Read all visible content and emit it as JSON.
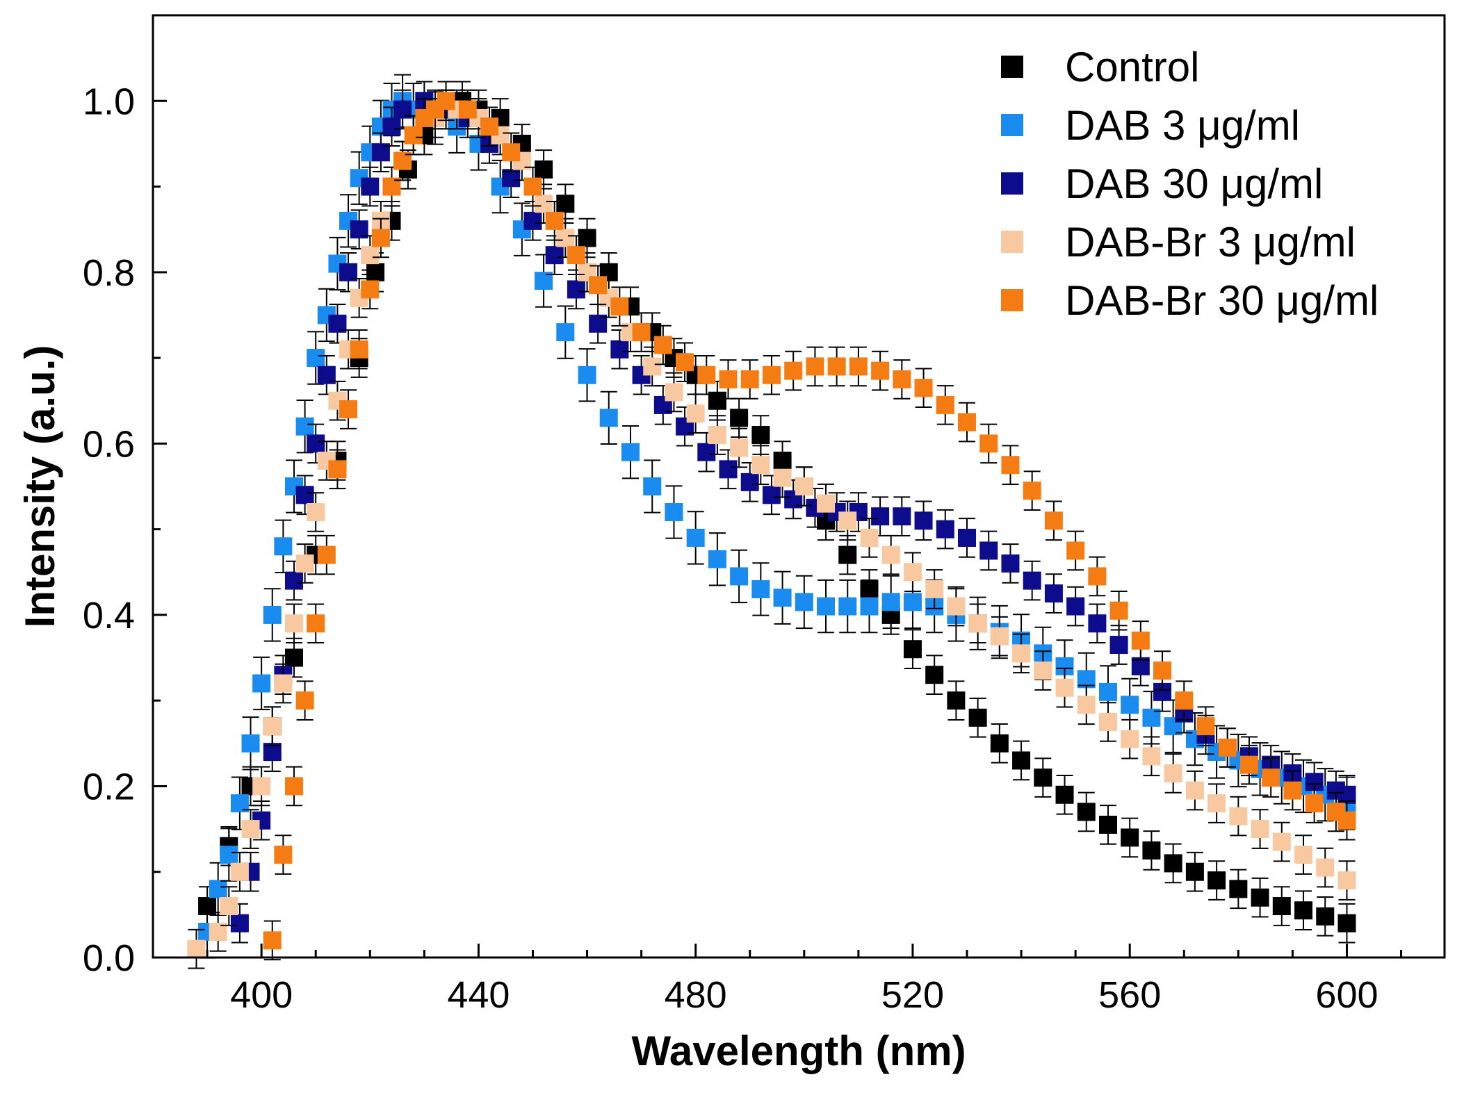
{
  "chart_data": {
    "type": "scatter",
    "title": "",
    "xlabel": "Wavelength (nm)",
    "ylabel": "Intensity (a.u.)",
    "xlim": [
      380,
      618
    ],
    "ylim": [
      0,
      1.1
    ],
    "x_ticks": [
      400,
      440,
      480,
      520,
      560,
      600
    ],
    "x_tick_labels": [
      "400",
      "440",
      "480",
      "520",
      "560",
      "600"
    ],
    "y_ticks": [
      0.0,
      0.2,
      0.4,
      0.6,
      0.8,
      1.0
    ],
    "y_tick_labels": [
      "0.0",
      "0.2",
      "0.4",
      "0.6",
      "0.8",
      "1.0"
    ],
    "x_minor_step": 10,
    "y_minor_step": 0.1,
    "grid": false,
    "legend_position": "top-right",
    "marker": "square",
    "error_bars": true,
    "series": [
      {
        "name": "Control",
        "color": "#000000",
        "points": [
          [
            390,
            0.06
          ],
          [
            394,
            0.13
          ],
          [
            398,
            0.2
          ],
          [
            402,
            0.27
          ],
          [
            406,
            0.35
          ],
          [
            410,
            0.47
          ],
          [
            414,
            0.58
          ],
          [
            418,
            0.7
          ],
          [
            421,
            0.8
          ],
          [
            424,
            0.86
          ],
          [
            427,
            0.92
          ],
          [
            430,
            0.96
          ],
          [
            434,
            0.99
          ],
          [
            437,
            1.0
          ],
          [
            440,
            0.99
          ],
          [
            444,
            0.98
          ],
          [
            448,
            0.95
          ],
          [
            452,
            0.92
          ],
          [
            456,
            0.88
          ],
          [
            460,
            0.84
          ],
          [
            464,
            0.8
          ],
          [
            468,
            0.76
          ],
          [
            472,
            0.73
          ],
          [
            476,
            0.7
          ],
          [
            480,
            0.68
          ],
          [
            484,
            0.65
          ],
          [
            488,
            0.63
          ],
          [
            492,
            0.61
          ],
          [
            496,
            0.58
          ],
          [
            500,
            0.55
          ],
          [
            504,
            0.51
          ],
          [
            508,
            0.47
          ],
          [
            512,
            0.43
          ],
          [
            516,
            0.4
          ],
          [
            520,
            0.36
          ],
          [
            524,
            0.33
          ],
          [
            528,
            0.3
          ],
          [
            532,
            0.28
          ],
          [
            536,
            0.25
          ],
          [
            540,
            0.23
          ],
          [
            544,
            0.21
          ],
          [
            548,
            0.19
          ],
          [
            552,
            0.17
          ],
          [
            556,
            0.155
          ],
          [
            560,
            0.14
          ],
          [
            564,
            0.125
          ],
          [
            568,
            0.11
          ],
          [
            572,
            0.1
          ],
          [
            576,
            0.09
          ],
          [
            580,
            0.08
          ],
          [
            584,
            0.07
          ],
          [
            588,
            0.06
          ],
          [
            592,
            0.055
          ],
          [
            596,
            0.048
          ],
          [
            600,
            0.04
          ]
        ],
        "error": 0.012
      },
      {
        "name": "DAB 3 μg/ml",
        "color": "#1a8cf0",
        "points": [
          [
            390,
            0.03
          ],
          [
            392,
            0.08
          ],
          [
            394,
            0.12
          ],
          [
            396,
            0.18
          ],
          [
            398,
            0.25
          ],
          [
            400,
            0.32
          ],
          [
            402,
            0.4
          ],
          [
            404,
            0.48
          ],
          [
            406,
            0.55
          ],
          [
            408,
            0.62
          ],
          [
            410,
            0.7
          ],
          [
            412,
            0.75
          ],
          [
            414,
            0.81
          ],
          [
            416,
            0.86
          ],
          [
            418,
            0.91
          ],
          [
            420,
            0.94
          ],
          [
            422,
            0.97
          ],
          [
            424,
            0.99
          ],
          [
            426,
            1.0
          ],
          [
            428,
            0.99
          ],
          [
            432,
            0.98
          ],
          [
            436,
            0.97
          ],
          [
            440,
            0.95
          ],
          [
            444,
            0.9
          ],
          [
            448,
            0.85
          ],
          [
            452,
            0.79
          ],
          [
            456,
            0.73
          ],
          [
            460,
            0.68
          ],
          [
            464,
            0.63
          ],
          [
            468,
            0.59
          ],
          [
            472,
            0.55
          ],
          [
            476,
            0.52
          ],
          [
            480,
            0.49
          ],
          [
            484,
            0.465
          ],
          [
            488,
            0.445
          ],
          [
            492,
            0.43
          ],
          [
            496,
            0.42
          ],
          [
            500,
            0.415
          ],
          [
            504,
            0.41
          ],
          [
            508,
            0.41
          ],
          [
            512,
            0.41
          ],
          [
            516,
            0.415
          ],
          [
            520,
            0.415
          ],
          [
            524,
            0.41
          ],
          [
            528,
            0.4
          ],
          [
            532,
            0.39
          ],
          [
            536,
            0.38
          ],
          [
            540,
            0.37
          ],
          [
            544,
            0.355
          ],
          [
            548,
            0.34
          ],
          [
            552,
            0.325
          ],
          [
            556,
            0.31
          ],
          [
            560,
            0.295
          ],
          [
            564,
            0.28
          ],
          [
            568,
            0.27
          ],
          [
            572,
            0.255
          ],
          [
            576,
            0.24
          ],
          [
            580,
            0.23
          ],
          [
            584,
            0.22
          ],
          [
            588,
            0.21
          ],
          [
            592,
            0.2
          ],
          [
            596,
            0.19
          ],
          [
            600,
            0.18
          ]
        ],
        "error": 0.02
      },
      {
        "name": "DAB 30 μg/ml",
        "color": "#0c0c8c",
        "points": [
          [
            396,
            0.04
          ],
          [
            398,
            0.1
          ],
          [
            400,
            0.16
          ],
          [
            402,
            0.24
          ],
          [
            404,
            0.33
          ],
          [
            406,
            0.44
          ],
          [
            408,
            0.54
          ],
          [
            410,
            0.6
          ],
          [
            412,
            0.68
          ],
          [
            414,
            0.74
          ],
          [
            416,
            0.8
          ],
          [
            418,
            0.85
          ],
          [
            420,
            0.9
          ],
          [
            422,
            0.94
          ],
          [
            424,
            0.97
          ],
          [
            426,
            0.99
          ],
          [
            430,
            1.0
          ],
          [
            434,
            0.99
          ],
          [
            438,
            0.98
          ],
          [
            442,
            0.95
          ],
          [
            446,
            0.91
          ],
          [
            450,
            0.86
          ],
          [
            454,
            0.82
          ],
          [
            458,
            0.78
          ],
          [
            462,
            0.74
          ],
          [
            466,
            0.71
          ],
          [
            470,
            0.68
          ],
          [
            474,
            0.645
          ],
          [
            478,
            0.62
          ],
          [
            482,
            0.59
          ],
          [
            486,
            0.57
          ],
          [
            490,
            0.555
          ],
          [
            494,
            0.54
          ],
          [
            498,
            0.535
          ],
          [
            502,
            0.525
          ],
          [
            506,
            0.52
          ],
          [
            510,
            0.52
          ],
          [
            514,
            0.515
          ],
          [
            518,
            0.515
          ],
          [
            522,
            0.51
          ],
          [
            526,
            0.5
          ],
          [
            530,
            0.49
          ],
          [
            534,
            0.475
          ],
          [
            538,
            0.46
          ],
          [
            542,
            0.44
          ],
          [
            546,
            0.425
          ],
          [
            550,
            0.41
          ],
          [
            554,
            0.39
          ],
          [
            558,
            0.365
          ],
          [
            562,
            0.34
          ],
          [
            566,
            0.31
          ],
          [
            570,
            0.285
          ],
          [
            574,
            0.26
          ],
          [
            578,
            0.245
          ],
          [
            582,
            0.235
          ],
          [
            586,
            0.225
          ],
          [
            590,
            0.215
          ],
          [
            594,
            0.205
          ],
          [
            598,
            0.195
          ],
          [
            600,
            0.19
          ]
        ],
        "error": 0.012
      },
      {
        "name": "DAB-Br 3 μg/ml",
        "color": "#f8c9a0",
        "points": [
          [
            388,
            0.01
          ],
          [
            392,
            0.03
          ],
          [
            394,
            0.06
          ],
          [
            396,
            0.1
          ],
          [
            398,
            0.15
          ],
          [
            400,
            0.2
          ],
          [
            402,
            0.27
          ],
          [
            404,
            0.32
          ],
          [
            406,
            0.39
          ],
          [
            408,
            0.46
          ],
          [
            410,
            0.52
          ],
          [
            412,
            0.58
          ],
          [
            414,
            0.65
          ],
          [
            416,
            0.71
          ],
          [
            418,
            0.77
          ],
          [
            420,
            0.82
          ],
          [
            422,
            0.86
          ],
          [
            424,
            0.9
          ],
          [
            426,
            0.93
          ],
          [
            428,
            0.96
          ],
          [
            432,
            0.98
          ],
          [
            436,
            0.99
          ],
          [
            440,
            0.98
          ],
          [
            444,
            0.96
          ],
          [
            448,
            0.93
          ],
          [
            452,
            0.88
          ],
          [
            456,
            0.84
          ],
          [
            460,
            0.8
          ],
          [
            464,
            0.77
          ],
          [
            468,
            0.73
          ],
          [
            472,
            0.69
          ],
          [
            476,
            0.66
          ],
          [
            480,
            0.635
          ],
          [
            484,
            0.61
          ],
          [
            488,
            0.595
          ],
          [
            492,
            0.575
          ],
          [
            496,
            0.56
          ],
          [
            500,
            0.55
          ],
          [
            504,
            0.53
          ],
          [
            508,
            0.51
          ],
          [
            512,
            0.49
          ],
          [
            516,
            0.47
          ],
          [
            520,
            0.45
          ],
          [
            524,
            0.43
          ],
          [
            528,
            0.41
          ],
          [
            532,
            0.39
          ],
          [
            536,
            0.375
          ],
          [
            540,
            0.355
          ],
          [
            544,
            0.335
          ],
          [
            548,
            0.315
          ],
          [
            552,
            0.295
          ],
          [
            556,
            0.275
          ],
          [
            560,
            0.255
          ],
          [
            564,
            0.235
          ],
          [
            568,
            0.215
          ],
          [
            572,
            0.195
          ],
          [
            576,
            0.18
          ],
          [
            580,
            0.165
          ],
          [
            584,
            0.15
          ],
          [
            588,
            0.135
          ],
          [
            592,
            0.12
          ],
          [
            596,
            0.105
          ],
          [
            600,
            0.09
          ]
        ],
        "error": 0.012
      },
      {
        "name": "DAB-Br 30 μg/ml",
        "color": "#f57c13",
        "points": [
          [
            402,
            0.02
          ],
          [
            404,
            0.12
          ],
          [
            406,
            0.2
          ],
          [
            408,
            0.3
          ],
          [
            410,
            0.39
          ],
          [
            412,
            0.47
          ],
          [
            414,
            0.57
          ],
          [
            416,
            0.64
          ],
          [
            418,
            0.71
          ],
          [
            420,
            0.78
          ],
          [
            422,
            0.84
          ],
          [
            424,
            0.9
          ],
          [
            426,
            0.93
          ],
          [
            428,
            0.96
          ],
          [
            430,
            0.98
          ],
          [
            432,
            0.99
          ],
          [
            434,
            1.0
          ],
          [
            438,
            0.99
          ],
          [
            442,
            0.97
          ],
          [
            446,
            0.94
          ],
          [
            450,
            0.9
          ],
          [
            454,
            0.86
          ],
          [
            458,
            0.82
          ],
          [
            462,
            0.785
          ],
          [
            466,
            0.76
          ],
          [
            470,
            0.73
          ],
          [
            474,
            0.715
          ],
          [
            478,
            0.695
          ],
          [
            482,
            0.68
          ],
          [
            486,
            0.675
          ],
          [
            490,
            0.675
          ],
          [
            494,
            0.68
          ],
          [
            498,
            0.685
          ],
          [
            502,
            0.69
          ],
          [
            506,
            0.69
          ],
          [
            510,
            0.69
          ],
          [
            514,
            0.685
          ],
          [
            518,
            0.675
          ],
          [
            522,
            0.665
          ],
          [
            526,
            0.645
          ],
          [
            530,
            0.625
          ],
          [
            534,
            0.6
          ],
          [
            538,
            0.575
          ],
          [
            542,
            0.545
          ],
          [
            546,
            0.51
          ],
          [
            550,
            0.475
          ],
          [
            554,
            0.445
          ],
          [
            558,
            0.405
          ],
          [
            562,
            0.37
          ],
          [
            566,
            0.335
          ],
          [
            570,
            0.3
          ],
          [
            574,
            0.27
          ],
          [
            578,
            0.245
          ],
          [
            582,
            0.225
          ],
          [
            586,
            0.21
          ],
          [
            590,
            0.195
          ],
          [
            594,
            0.18
          ],
          [
            598,
            0.17
          ],
          [
            600,
            0.16
          ]
        ],
        "error": 0.012
      }
    ]
  }
}
